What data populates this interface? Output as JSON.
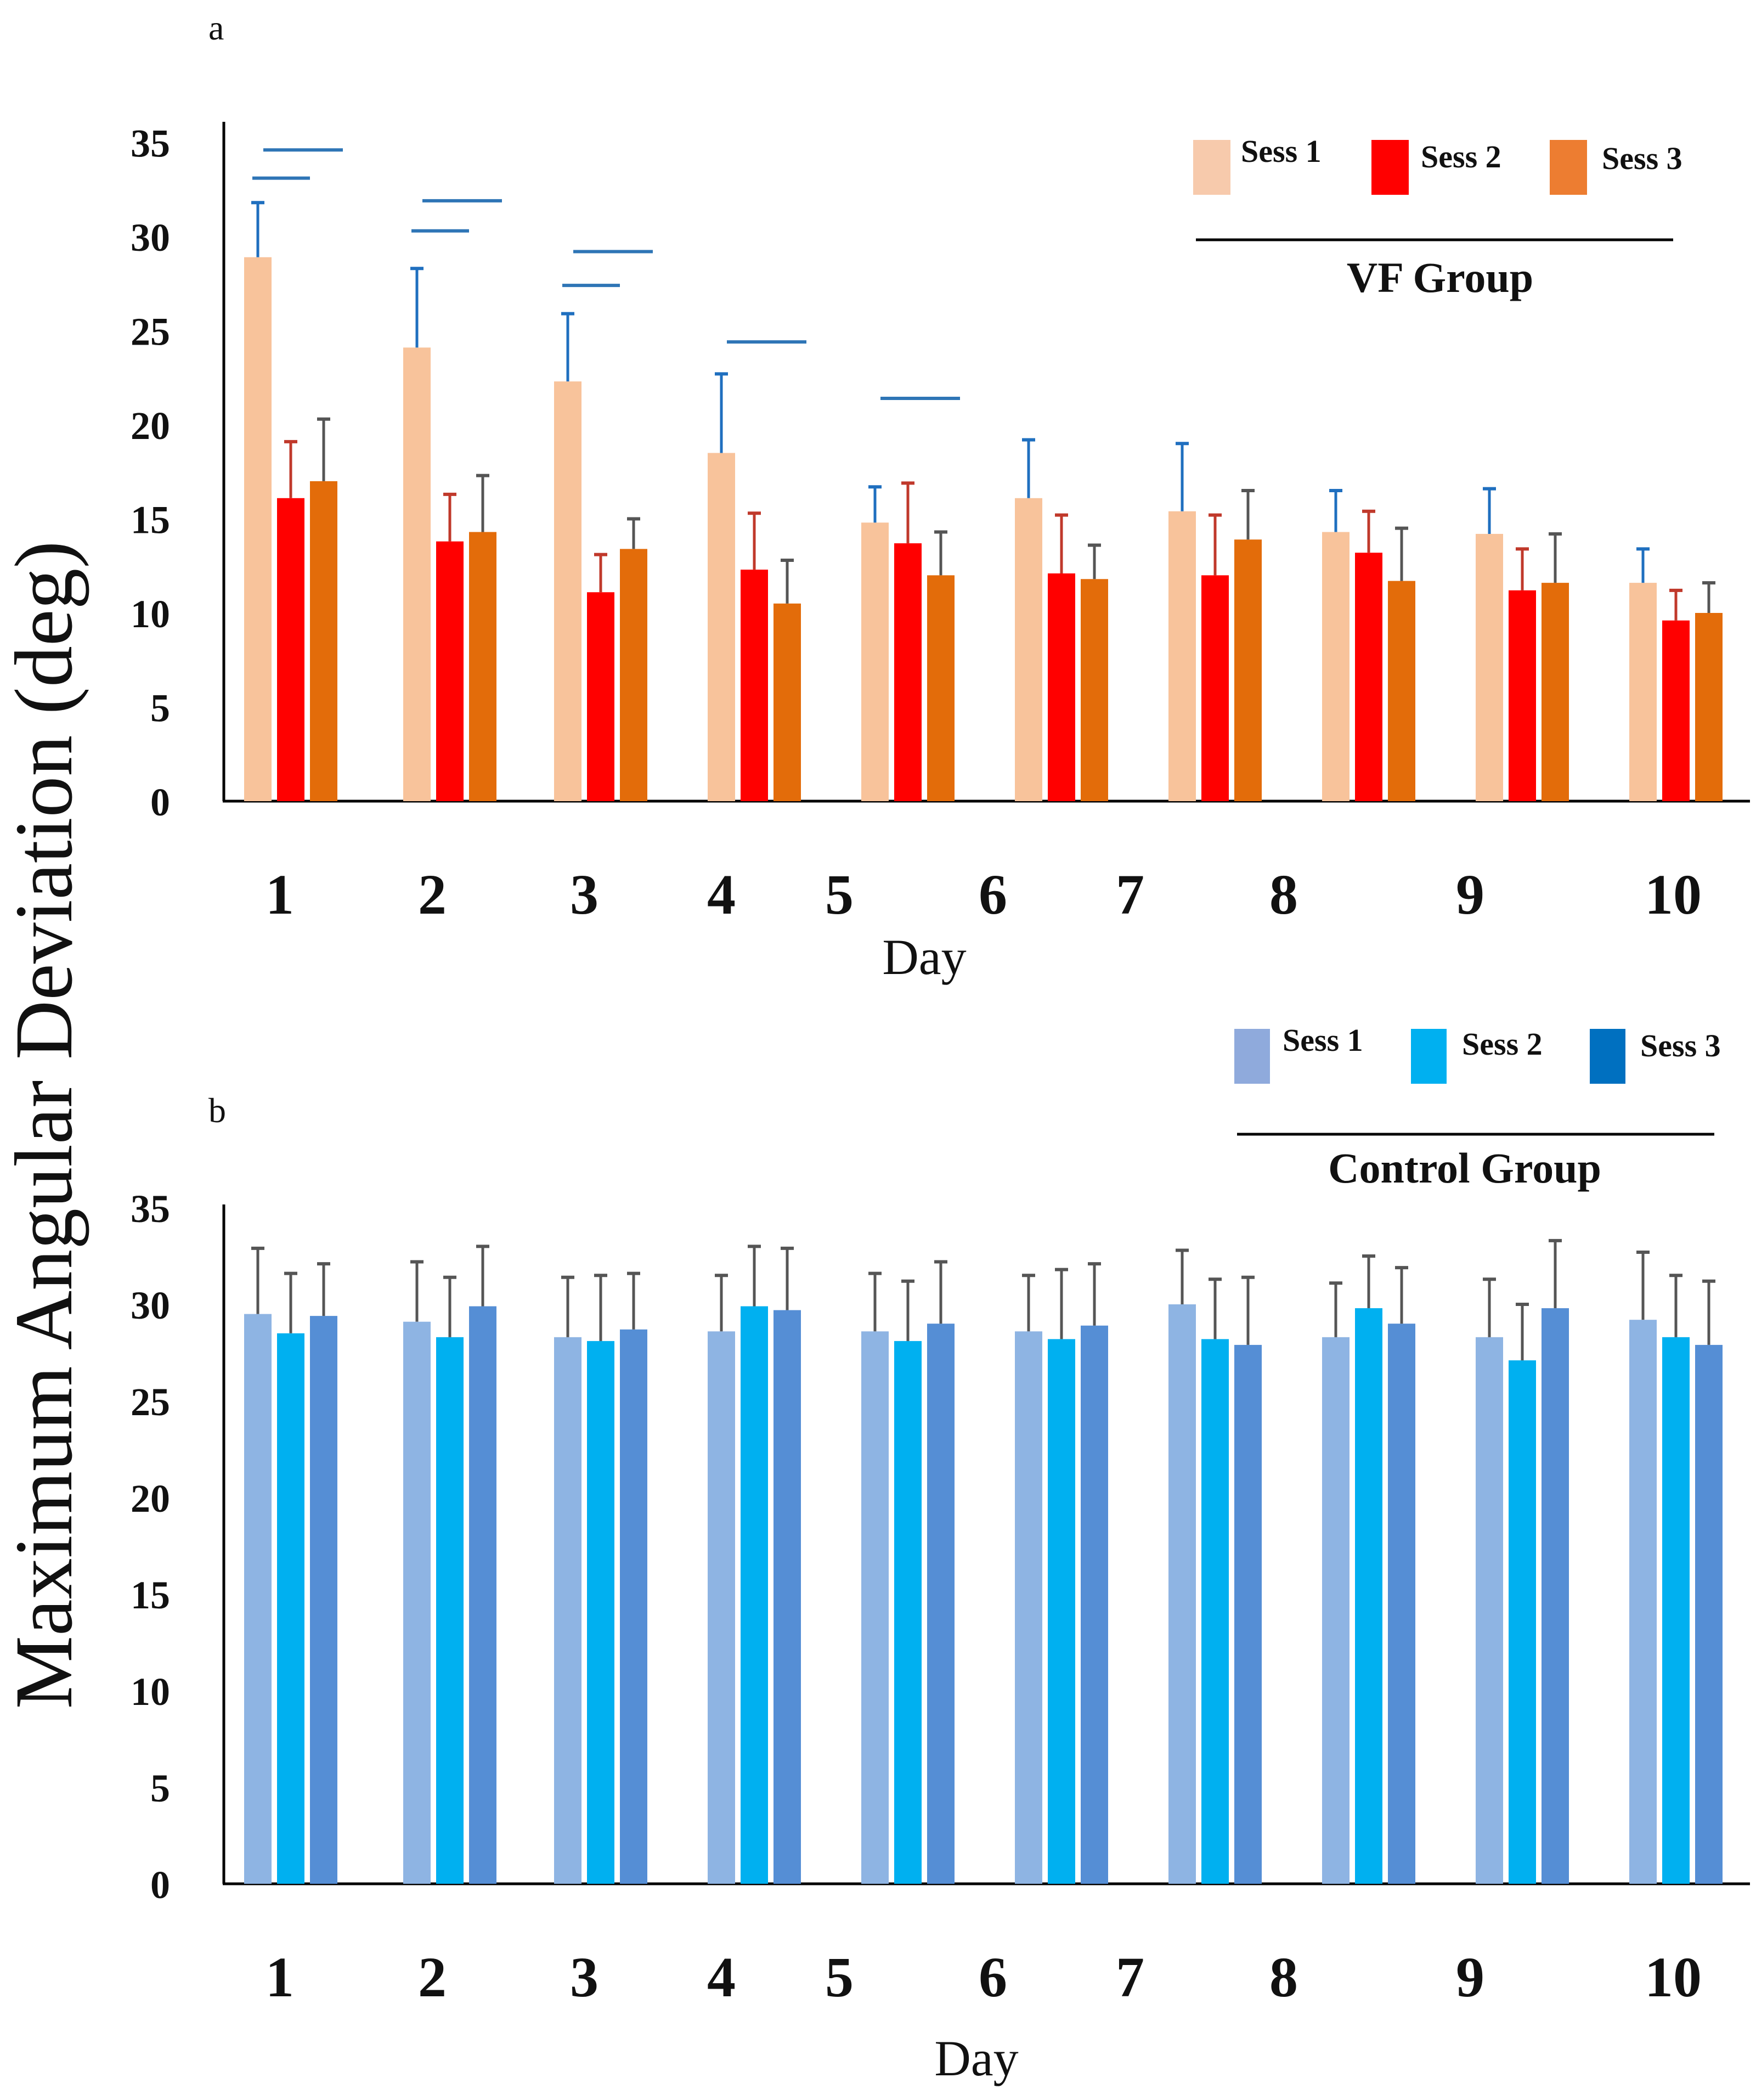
{
  "figure": {
    "ylabel": "Maximum Angular Deviation (deg)"
  },
  "chart_data": [
    {
      "type": "bar",
      "panel_label": "a",
      "group_name": "VF Group",
      "xlabel": "Day",
      "ylabel": "Maximum Angular Deviation (deg)",
      "ylim": [
        0,
        35
      ],
      "yticks": [
        "0",
        "5",
        "10",
        "15",
        "20",
        "25",
        "30",
        "35"
      ],
      "categories": [
        "1",
        "2",
        "3",
        "4",
        "5",
        "6",
        "7",
        "8",
        "9",
        "10"
      ],
      "legend_position": "top-right",
      "series": [
        {
          "name": "Sess 1",
          "color": "#f8c39b",
          "legend_color": "#f7caac",
          "error_color": "#1f6fbf",
          "values": [
            28.9,
            24.1,
            22.3,
            18.5,
            14.8,
            16.1,
            15.4,
            14.3,
            14.2,
            11.6
          ],
          "errors": [
            2.9,
            4.2,
            3.6,
            4.2,
            1.9,
            3.1,
            3.6,
            2.2,
            2.4,
            1.8
          ]
        },
        {
          "name": "Sess 2",
          "color": "#ff0000",
          "legend_color": "#ff0000",
          "error_color": "#c0392b",
          "values": [
            16.1,
            13.8,
            11.1,
            12.3,
            13.7,
            12.1,
            12.0,
            13.2,
            11.2,
            9.6
          ],
          "errors": [
            3.0,
            2.5,
            2.0,
            3.0,
            3.2,
            3.1,
            3.2,
            2.2,
            2.2,
            1.6
          ]
        },
        {
          "name": "Sess 3",
          "color": "#e36c0a",
          "legend_color": "#ed7d31",
          "error_color": "#555555",
          "values": [
            17.0,
            14.3,
            13.4,
            10.5,
            12.0,
            11.8,
            13.9,
            11.7,
            11.6,
            10.0
          ],
          "errors": [
            3.3,
            3.0,
            1.6,
            2.3,
            2.3,
            1.8,
            2.6,
            2.8,
            2.6,
            1.6
          ]
        }
      ],
      "significance_lines": [
        {
          "category": "1",
          "levels": [
            34.6,
            33.1
          ]
        },
        {
          "category": "2",
          "levels": [
            31.9,
            30.3
          ]
        },
        {
          "category": "3",
          "levels": [
            29.2,
            27.4
          ]
        },
        {
          "category": "4",
          "levels": [
            24.4
          ]
        },
        {
          "category": "5",
          "levels": [
            21.4
          ]
        }
      ]
    },
    {
      "type": "bar",
      "panel_label": "b",
      "group_name": "Control Group",
      "xlabel": "Day",
      "ylabel": "Maximum Angular Deviation (deg)",
      "ylim": [
        0,
        35
      ],
      "yticks": [
        "0",
        "5",
        "10",
        "15",
        "20",
        "25",
        "30",
        "35"
      ],
      "categories": [
        "1",
        "2",
        "3",
        "4",
        "5",
        "6",
        "7",
        "8",
        "9",
        "10"
      ],
      "legend_position": "top-right",
      "series": [
        {
          "name": "Sess 1",
          "color": "#8eb4e3",
          "legend_color": "#8faadc",
          "error_color": "#555555",
          "values": [
            29.5,
            29.1,
            28.3,
            28.6,
            28.6,
            28.6,
            30.0,
            28.3,
            28.3,
            29.2
          ],
          "errors": [
            3.4,
            3.1,
            3.1,
            2.9,
            3.0,
            2.9,
            2.8,
            2.8,
            3.0,
            3.5
          ]
        },
        {
          "name": "Sess 2",
          "color": "#00b0f0",
          "legend_color": "#00b0f0",
          "error_color": "#555555",
          "values": [
            28.5,
            28.3,
            28.1,
            29.9,
            28.1,
            28.2,
            28.2,
            29.8,
            27.1,
            28.3
          ],
          "errors": [
            3.1,
            3.1,
            3.4,
            3.1,
            3.1,
            3.6,
            3.1,
            2.7,
            2.9,
            3.2
          ]
        },
        {
          "name": "Sess 3",
          "color": "#558ed5",
          "legend_color": "#0070c0",
          "error_color": "#555555",
          "values": [
            29.4,
            29.9,
            28.7,
            29.7,
            29.0,
            28.9,
            27.9,
            29.0,
            29.8,
            27.9
          ],
          "errors": [
            2.7,
            3.1,
            2.9,
            3.2,
            3.2,
            3.2,
            3.5,
            2.9,
            3.5,
            3.3
          ]
        }
      ]
    }
  ]
}
